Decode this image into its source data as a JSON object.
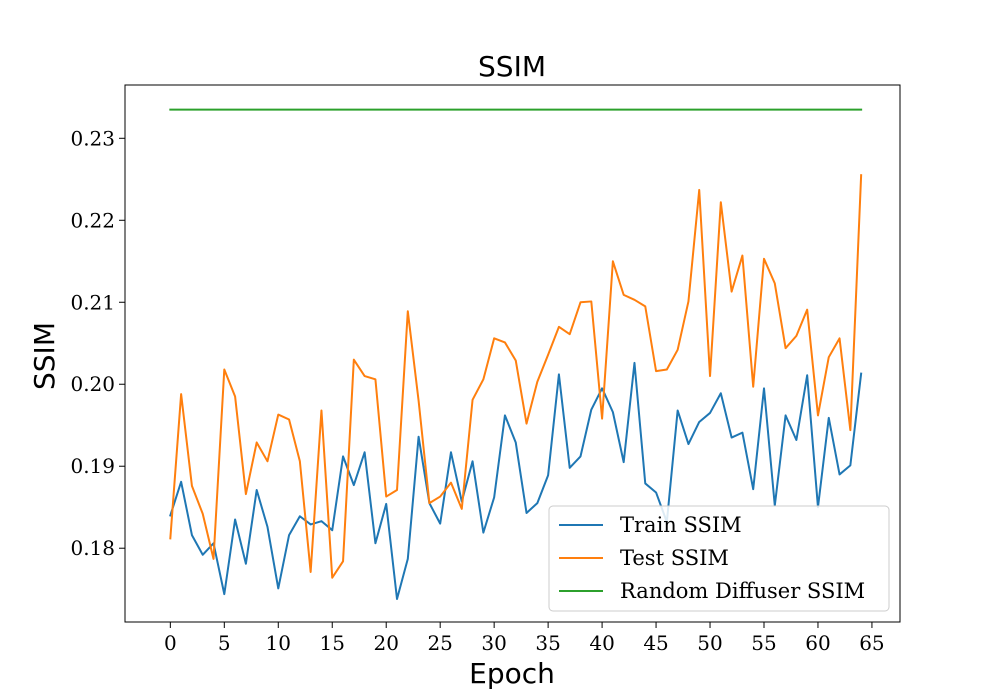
{
  "chart_data": {
    "type": "line",
    "title": "SSIM",
    "xlabel": "Epoch",
    "ylabel": "SSIM",
    "xlim": [
      -4.2,
      67.6
    ],
    "ylim": [
      0.171,
      0.2365
    ],
    "xticks": [
      0,
      5,
      10,
      15,
      20,
      25,
      30,
      35,
      40,
      45,
      50,
      55,
      60,
      65
    ],
    "yticks": [
      0.18,
      0.19,
      0.2,
      0.21,
      0.22,
      0.23
    ],
    "ytick_labels": [
      "0.18",
      "0.19",
      "0.20",
      "0.21",
      "0.22",
      "0.23"
    ],
    "grid": false,
    "legend_position": "lower-right",
    "series": [
      {
        "name": "Train SSIM",
        "color": "#1f77b4",
        "x": [
          0,
          1,
          2,
          3,
          4,
          5,
          6,
          7,
          8,
          9,
          10,
          11,
          12,
          13,
          14,
          15,
          16,
          17,
          18,
          19,
          20,
          21,
          22,
          23,
          24,
          25,
          26,
          27,
          28,
          29,
          30,
          31,
          32,
          33,
          34,
          35,
          36,
          37,
          38,
          39,
          40,
          41,
          42,
          43,
          44,
          45,
          46,
          47,
          48,
          49,
          50,
          51,
          52,
          53,
          54,
          55,
          56,
          57,
          58,
          59,
          60,
          61,
          62,
          63,
          64
        ],
        "y": [
          0.184,
          0.1881,
          0.1816,
          0.1792,
          0.1806,
          0.1744,
          0.1835,
          0.1781,
          0.1871,
          0.1826,
          0.1751,
          0.1816,
          0.1839,
          0.1829,
          0.1833,
          0.1822,
          0.1912,
          0.1877,
          0.1917,
          0.1806,
          0.1854,
          0.1738,
          0.1787,
          0.1936,
          0.1855,
          0.183,
          0.1917,
          0.1857,
          0.1906,
          0.1819,
          0.1862,
          0.1962,
          0.1929,
          0.1843,
          0.1855,
          0.1889,
          0.2012,
          0.1898,
          0.1912,
          0.1969,
          0.1995,
          0.1966,
          0.1905,
          0.2026,
          0.1879,
          0.1868,
          0.1832,
          0.1968,
          0.1927,
          0.1954,
          0.1965,
          0.1989,
          0.1935,
          0.1941,
          0.1872,
          0.1995,
          0.1852,
          0.1962,
          0.1932,
          0.2011,
          0.185,
          0.1959,
          0.189,
          0.1901,
          0.2013
        ]
      },
      {
        "name": "Test SSIM",
        "color": "#ff7f0e",
        "x": [
          0,
          1,
          2,
          3,
          4,
          5,
          6,
          7,
          8,
          9,
          10,
          11,
          12,
          13,
          14,
          15,
          16,
          17,
          18,
          19,
          20,
          21,
          22,
          23,
          24,
          25,
          26,
          27,
          28,
          29,
          30,
          31,
          32,
          33,
          34,
          35,
          36,
          37,
          38,
          39,
          40,
          41,
          42,
          43,
          44,
          45,
          46,
          47,
          48,
          49,
          50,
          51,
          52,
          53,
          54,
          55,
          56,
          57,
          58,
          59,
          60,
          61,
          62,
          63,
          64
        ],
        "y": [
          0.1812,
          0.1988,
          0.1876,
          0.1842,
          0.1787,
          0.2018,
          0.1985,
          0.1866,
          0.1929,
          0.1906,
          0.1963,
          0.1957,
          0.1906,
          0.1771,
          0.1968,
          0.1764,
          0.1784,
          0.203,
          0.201,
          0.2006,
          0.1863,
          0.1871,
          0.2089,
          0.198,
          0.1855,
          0.1863,
          0.188,
          0.1848,
          0.1981,
          0.2006,
          0.2056,
          0.2051,
          0.2029,
          0.1952,
          0.2003,
          0.2036,
          0.207,
          0.2061,
          0.21,
          0.2101,
          0.1958,
          0.215,
          0.2109,
          0.2103,
          0.2095,
          0.2016,
          0.2018,
          0.2042,
          0.2101,
          0.2237,
          0.201,
          0.2222,
          0.2113,
          0.2157,
          0.1997,
          0.2153,
          0.2123,
          0.2044,
          0.2059,
          0.2091,
          0.1962,
          0.2033,
          0.2056,
          0.1944,
          0.2255
        ]
      },
      {
        "name": "Random Diffuser SSIM",
        "color": "#2ca02c",
        "x": [
          0,
          64
        ],
        "y": [
          0.2335,
          0.2335
        ]
      }
    ]
  }
}
